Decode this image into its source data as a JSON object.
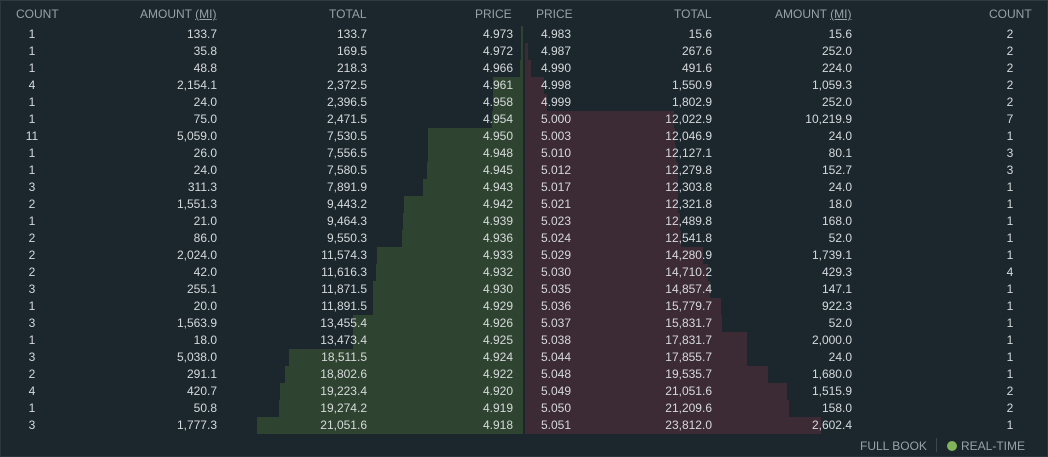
{
  "headers": {
    "bid_count": "COUNT",
    "bid_amount": "AMOUNT",
    "bid_amount_unit": "(MI)",
    "bid_total": "TOTAL",
    "bid_price": "PRICE",
    "ask_price": "PRICE",
    "ask_total": "TOTAL",
    "ask_amount": "AMOUNT",
    "ask_amount_unit": "(MI)",
    "ask_count": "COUNT"
  },
  "bids": [
    {
      "count": "1",
      "amount": "133.7",
      "total": "133.7",
      "price": "4.973"
    },
    {
      "count": "1",
      "amount": "35.8",
      "total": "169.5",
      "price": "4.972"
    },
    {
      "count": "1",
      "amount": "48.8",
      "total": "218.3",
      "price": "4.966"
    },
    {
      "count": "4",
      "amount": "2,154.1",
      "total": "2,372.5",
      "price": "4.961"
    },
    {
      "count": "1",
      "amount": "24.0",
      "total": "2,396.5",
      "price": "4.958"
    },
    {
      "count": "1",
      "amount": "75.0",
      "total": "2,471.5",
      "price": "4.954"
    },
    {
      "count": "11",
      "amount": "5,059.0",
      "total": "7,530.5",
      "price": "4.950"
    },
    {
      "count": "1",
      "amount": "26.0",
      "total": "7,556.5",
      "price": "4.948"
    },
    {
      "count": "1",
      "amount": "24.0",
      "total": "7,580.5",
      "price": "4.945"
    },
    {
      "count": "3",
      "amount": "311.3",
      "total": "7,891.9",
      "price": "4.943"
    },
    {
      "count": "2",
      "amount": "1,551.3",
      "total": "9,443.2",
      "price": "4.942"
    },
    {
      "count": "1",
      "amount": "21.0",
      "total": "9,464.3",
      "price": "4.939"
    },
    {
      "count": "2",
      "amount": "86.0",
      "total": "9,550.3",
      "price": "4.936"
    },
    {
      "count": "2",
      "amount": "2,024.0",
      "total": "11,574.3",
      "price": "4.933"
    },
    {
      "count": "2",
      "amount": "42.0",
      "total": "11,616.3",
      "price": "4.932"
    },
    {
      "count": "3",
      "amount": "255.1",
      "total": "11,871.5",
      "price": "4.930"
    },
    {
      "count": "1",
      "amount": "20.0",
      "total": "11,891.5",
      "price": "4.929"
    },
    {
      "count": "3",
      "amount": "1,563.9",
      "total": "13,455.4",
      "price": "4.926"
    },
    {
      "count": "1",
      "amount": "18.0",
      "total": "13,473.4",
      "price": "4.925"
    },
    {
      "count": "3",
      "amount": "5,038.0",
      "total": "18,511.5",
      "price": "4.924"
    },
    {
      "count": "2",
      "amount": "291.1",
      "total": "18,802.6",
      "price": "4.922"
    },
    {
      "count": "4",
      "amount": "420.7",
      "total": "19,223.4",
      "price": "4.920"
    },
    {
      "count": "1",
      "amount": "50.8",
      "total": "19,274.2",
      "price": "4.919"
    },
    {
      "count": "3",
      "amount": "1,777.3",
      "total": "21,051.6",
      "price": "4.918"
    }
  ],
  "asks": [
    {
      "price": "4.983",
      "total": "15.6",
      "amount": "15.6",
      "count": "2"
    },
    {
      "price": "4.987",
      "total": "267.6",
      "amount": "252.0",
      "count": "2"
    },
    {
      "price": "4.990",
      "total": "491.6",
      "amount": "224.0",
      "count": "2"
    },
    {
      "price": "4.998",
      "total": "1,550.9",
      "amount": "1,059.3",
      "count": "2"
    },
    {
      "price": "4.999",
      "total": "1,802.9",
      "amount": "252.0",
      "count": "2"
    },
    {
      "price": "5.000",
      "total": "12,022.9",
      "amount": "10,219.9",
      "count": "7"
    },
    {
      "price": "5.003",
      "total": "12,046.9",
      "amount": "24.0",
      "count": "1"
    },
    {
      "price": "5.010",
      "total": "12,127.1",
      "amount": "80.1",
      "count": "3"
    },
    {
      "price": "5.012",
      "total": "12,279.8",
      "amount": "152.7",
      "count": "3"
    },
    {
      "price": "5.017",
      "total": "12,303.8",
      "amount": "24.0",
      "count": "1"
    },
    {
      "price": "5.021",
      "total": "12,321.8",
      "amount": "18.0",
      "count": "1"
    },
    {
      "price": "5.023",
      "total": "12,489.8",
      "amount": "168.0",
      "count": "1"
    },
    {
      "price": "5.024",
      "total": "12,541.8",
      "amount": "52.0",
      "count": "1"
    },
    {
      "price": "5.029",
      "total": "14,280.9",
      "amount": "1,739.1",
      "count": "1"
    },
    {
      "price": "5.030",
      "total": "14,710.2",
      "amount": "429.3",
      "count": "4"
    },
    {
      "price": "5.035",
      "total": "14,857.4",
      "amount": "147.1",
      "count": "1"
    },
    {
      "price": "5.036",
      "total": "15,779.7",
      "amount": "922.3",
      "count": "1"
    },
    {
      "price": "5.037",
      "total": "15,831.7",
      "amount": "52.0",
      "count": "1"
    },
    {
      "price": "5.038",
      "total": "17,831.7",
      "amount": "2,000.0",
      "count": "1"
    },
    {
      "price": "5.044",
      "total": "17,855.7",
      "amount": "24.0",
      "count": "1"
    },
    {
      "price": "5.048",
      "total": "19,535.7",
      "amount": "1,680.0",
      "count": "1"
    },
    {
      "price": "5.049",
      "total": "21,051.6",
      "amount": "1,515.9",
      "count": "2"
    },
    {
      "price": "5.050",
      "total": "21,209.6",
      "amount": "158.0",
      "count": "2"
    },
    {
      "price": "5.051",
      "total": "23,812.0",
      "amount": "2,602.4",
      "count": "1"
    }
  ],
  "footer": {
    "full_book": "FULL BOOK",
    "real_time": "REAL-TIME"
  },
  "colors": {
    "background": "#1b262d",
    "bid_depth": "#2f4430",
    "ask_depth": "#3c2b35",
    "header_text": "#98a1a6",
    "row_text": "#d5d9db",
    "realtime_dot": "#82b55a"
  }
}
